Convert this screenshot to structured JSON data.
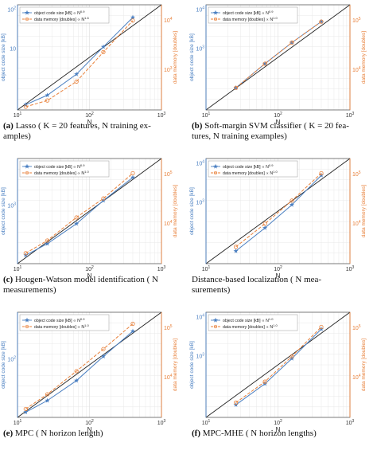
{
  "chart_data": [
    {
      "type": "line",
      "caption_tag": "(a)",
      "caption": "Lasso (K = 20 features, N training examples)",
      "caption_lines": [
        "Lasso ( K = 20 features, N training ex-",
        "amples)"
      ],
      "xlabel": "N",
      "ylabel_left": "object code size [kB]",
      "ylabel_right": "data memory [doubles]",
      "xscale": "log",
      "yscale": "log",
      "xlim": [
        10,
        1000
      ],
      "x_ticks": [
        "10",
        "10",
        "10"
      ],
      "x_ticks_exp": [
        "1",
        "2",
        "3"
      ],
      "left_ticks": [
        "10",
        "10"
      ],
      "left_ticks_exp": [
        "2",
        ""
      ],
      "right_ticks": [
        "10",
        "10"
      ],
      "right_ticks_exp": [
        "4",
        "3"
      ],
      "legend_position": "top-left",
      "series": [
        {
          "name": "object code size [kB] ∝ N^0.9",
          "axis": "left",
          "color": "#4a7fc1",
          "marker": "star",
          "x": [
            13,
            26,
            66,
            156,
            400
          ],
          "y": [
            5,
            14,
            34,
            60,
            88
          ]
        },
        {
          "name": "data memory [doubles] ∝ N^1.6",
          "axis": "right",
          "color": "#e8803a",
          "marker": "circle",
          "x": [
            13,
            26,
            66,
            156,
            400
          ],
          "y": [
            3,
            9,
            27,
            55,
            85
          ]
        }
      ]
    },
    {
      "type": "line",
      "caption_tag": "(b)",
      "caption": "Soft-margin SVM classifier (K = 20 features, N training examples)",
      "caption_lines": [
        "Soft-margin SVM classifier ( K = 20 fea-",
        "tures, N training examples)"
      ],
      "xlabel": "N",
      "ylabel_left": "object code size [kB]",
      "ylabel_right": "data memory [doubles]",
      "xscale": "log",
      "yscale": "log",
      "xlim": [
        10,
        1000
      ],
      "x_ticks": [
        "10",
        "10",
        "10"
      ],
      "x_ticks_exp": [
        "1",
        "2",
        "3"
      ],
      "left_ticks": [
        "10",
        "10"
      ],
      "left_ticks_exp": [
        "4",
        "3"
      ],
      "right_ticks": [
        "10",
        "10"
      ],
      "right_ticks_exp": [
        "5",
        "4"
      ],
      "legend_position": "top-left",
      "series": [
        {
          "name": "object code size [kB] ∝ N^0.9",
          "axis": "left",
          "color": "#4a7fc1",
          "marker": "star",
          "x": [
            26,
            66,
            156,
            400
          ],
          "y": [
            21,
            44,
            64,
            84
          ]
        },
        {
          "name": "data memory [doubles] ∝ N^1.0",
          "axis": "right",
          "color": "#e8803a",
          "marker": "circle",
          "x": [
            26,
            66,
            156,
            400
          ],
          "y": [
            21,
            44,
            64,
            84
          ]
        }
      ]
    },
    {
      "type": "line",
      "caption_tag": "(c)",
      "caption": "Hougen-Watson model identification (N measurements)",
      "caption_lines": [
        "Hougen-Watson model identification ( N",
        "measurements)"
      ],
      "xlabel": "N",
      "ylabel_left": "object code size [kB]",
      "ylabel_right": "data memory [doubles]",
      "xscale": "log",
      "yscale": "log",
      "xlim": [
        10,
        1000
      ],
      "x_ticks": [
        "10",
        "10",
        "10"
      ],
      "x_ticks_exp": [
        "1",
        "2",
        "3"
      ],
      "left_ticks": [
        "10"
      ],
      "left_ticks_exp": [
        "3"
      ],
      "right_ticks": [
        "10",
        "10"
      ],
      "right_ticks_exp": [
        "5",
        "4"
      ],
      "legend_position": "top-left",
      "series": [
        {
          "name": "object code size [kB] ∝ N^0.9",
          "axis": "left",
          "color": "#4a7fc1",
          "marker": "star",
          "x": [
            13,
            26,
            66,
            156,
            400
          ],
          "y": [
            8,
            19,
            38,
            60,
            82
          ]
        },
        {
          "name": "data memory [doubles] ∝ N^1.0",
          "axis": "right",
          "color": "#e8803a",
          "marker": "circle",
          "x": [
            13,
            26,
            66,
            156,
            400
          ],
          "y": [
            10,
            22,
            44,
            62,
            86
          ]
        }
      ]
    },
    {
      "type": "line",
      "caption_tag": "",
      "caption": "Distance-based localization (N measurements)",
      "caption_lines": [
        "Distance-based localization ( N mea-",
        "surements)"
      ],
      "xlabel": "N",
      "ylabel_left": "object code size [kB]",
      "ylabel_right": "data memory [doubles]",
      "xscale": "log",
      "yscale": "log",
      "xlim": [
        10,
        1000
      ],
      "x_ticks": [
        "10",
        "10",
        "10"
      ],
      "x_ticks_exp": [
        "1",
        "2",
        "3"
      ],
      "left_ticks": [
        "10",
        "10"
      ],
      "left_ticks_exp": [
        "4",
        "3"
      ],
      "right_ticks": [
        "10",
        "10"
      ],
      "right_ticks_exp": [
        "5",
        "4"
      ],
      "legend_position": "top-left",
      "series": [
        {
          "name": "object code size [kB] ∝ N^0.9",
          "axis": "left",
          "color": "#4a7fc1",
          "marker": "star",
          "x": [
            26,
            66,
            156,
            400
          ],
          "y": [
            12,
            34,
            56,
            84
          ]
        },
        {
          "name": "data memory [doubles] ∝ N^1.0",
          "axis": "right",
          "color": "#e8803a",
          "marker": "circle",
          "x": [
            26,
            66,
            156,
            400
          ],
          "y": [
            16,
            38,
            60,
            86
          ]
        }
      ]
    },
    {
      "type": "line",
      "caption_tag": "(e)",
      "caption": "MPC (N horizon length)",
      "caption_lines": [
        "MPC ( N horizon length)"
      ],
      "xlabel": "N",
      "ylabel_left": "object code size [kB]",
      "ylabel_right": "data memory [doubles]",
      "xscale": "log",
      "yscale": "log",
      "xlim": [
        10,
        1000
      ],
      "x_ticks": [
        "10",
        "10",
        "10"
      ],
      "x_ticks_exp": [
        "1",
        "2",
        "3"
      ],
      "left_ticks": [
        "10"
      ],
      "left_ticks_exp": [
        "2"
      ],
      "right_ticks": [
        "10",
        "10"
      ],
      "right_ticks_exp": [
        "5",
        "4"
      ],
      "legend_position": "top-left",
      "series": [
        {
          "name": "object code size [kB] ∝ N^0.9",
          "axis": "left",
          "color": "#4a7fc1",
          "marker": "star",
          "x": [
            13,
            26,
            66,
            156,
            400
          ],
          "y": [
            5,
            16,
            35,
            58,
            82
          ]
        },
        {
          "name": "data memory [doubles] ∝ N^1.0",
          "axis": "right",
          "color": "#e8803a",
          "marker": "circle",
          "x": [
            13,
            26,
            66,
            156,
            400
          ],
          "y": [
            8,
            22,
            44,
            65,
            89
          ]
        }
      ]
    },
    {
      "type": "line",
      "caption_tag": "(f)",
      "caption": "MPC-MHE (N horizon lengths)",
      "caption_lines": [
        "MPC-MHE ( N horizon lengths)"
      ],
      "xlabel": "N",
      "ylabel_left": "object code size [kB]",
      "ylabel_right": "data memory [doubles]",
      "xscale": "log",
      "yscale": "log",
      "xlim": [
        10,
        1000
      ],
      "x_ticks": [
        "10",
        "10",
        "10"
      ],
      "x_ticks_exp": [
        "1",
        "2",
        "3"
      ],
      "left_ticks": [
        "10",
        "10"
      ],
      "left_ticks_exp": [
        "4",
        "3"
      ],
      "right_ticks": [
        "10",
        "10"
      ],
      "right_ticks_exp": [
        "5",
        "4"
      ],
      "legend_position": "top-left",
      "series": [
        {
          "name": "object code size [kB] ∝ N^1.0",
          "axis": "left",
          "color": "#4a7fc1",
          "marker": "star",
          "x": [
            26,
            66,
            156,
            400
          ],
          "y": [
            12,
            32,
            56,
            84
          ]
        },
        {
          "name": "data memory [doubles] ∝ N^1.0",
          "axis": "right",
          "color": "#e8803a",
          "marker": "circle",
          "x": [
            26,
            66,
            156,
            400
          ],
          "y": [
            14,
            34,
            58,
            86
          ]
        }
      ]
    }
  ]
}
